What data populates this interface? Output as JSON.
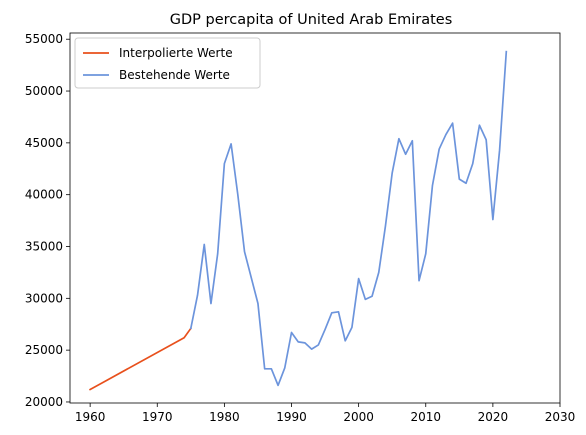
{
  "chart_data": {
    "type": "line",
    "title": "GDP percapita of United Arab Emirates",
    "xlabel": "",
    "ylabel": "",
    "xlim": [
      1957,
      2030
    ],
    "ylim": [
      19900,
      55600
    ],
    "xticks": [
      1960,
      1970,
      1980,
      1990,
      2000,
      2010,
      2020,
      2030
    ],
    "yticks": [
      20000,
      25000,
      30000,
      35000,
      40000,
      45000,
      50000,
      55000
    ],
    "grid": false,
    "legend_position": "top-left",
    "series": [
      {
        "name": "Interpolierte Werte",
        "color": "#e8501c",
        "points": [
          [
            1960,
            21200
          ],
          [
            1974,
            26200
          ],
          [
            1975,
            27100
          ]
        ]
      },
      {
        "name": "Bestehende Werte",
        "color": "#6c94dc",
        "points": [
          [
            1975,
            27100
          ],
          [
            1976,
            30300
          ],
          [
            1977,
            35200
          ],
          [
            1978,
            29500
          ],
          [
            1979,
            34300
          ],
          [
            1980,
            43000
          ],
          [
            1981,
            44900
          ],
          [
            1982,
            40000
          ],
          [
            1983,
            34500
          ],
          [
            1984,
            32000
          ],
          [
            1985,
            29500
          ],
          [
            1986,
            23200
          ],
          [
            1987,
            23200
          ],
          [
            1988,
            21600
          ],
          [
            1989,
            23300
          ],
          [
            1990,
            26700
          ],
          [
            1991,
            25800
          ],
          [
            1992,
            25700
          ],
          [
            1993,
            25100
          ],
          [
            1994,
            25500
          ],
          [
            1995,
            27000
          ],
          [
            1996,
            28600
          ],
          [
            1997,
            28700
          ],
          [
            1998,
            25900
          ],
          [
            1999,
            27200
          ],
          [
            2000,
            31900
          ],
          [
            2001,
            29900
          ],
          [
            2002,
            30200
          ],
          [
            2003,
            32500
          ],
          [
            2004,
            37000
          ],
          [
            2005,
            42100
          ],
          [
            2006,
            45400
          ],
          [
            2007,
            43900
          ],
          [
            2008,
            45200
          ],
          [
            2009,
            31700
          ],
          [
            2010,
            34300
          ],
          [
            2011,
            40900
          ],
          [
            2012,
            44400
          ],
          [
            2013,
            45800
          ],
          [
            2014,
            46900
          ],
          [
            2015,
            41500
          ],
          [
            2016,
            41100
          ],
          [
            2017,
            43000
          ],
          [
            2018,
            46700
          ],
          [
            2019,
            45300
          ],
          [
            2020,
            37600
          ],
          [
            2021,
            44300
          ],
          [
            2022,
            53800
          ]
        ]
      }
    ]
  }
}
